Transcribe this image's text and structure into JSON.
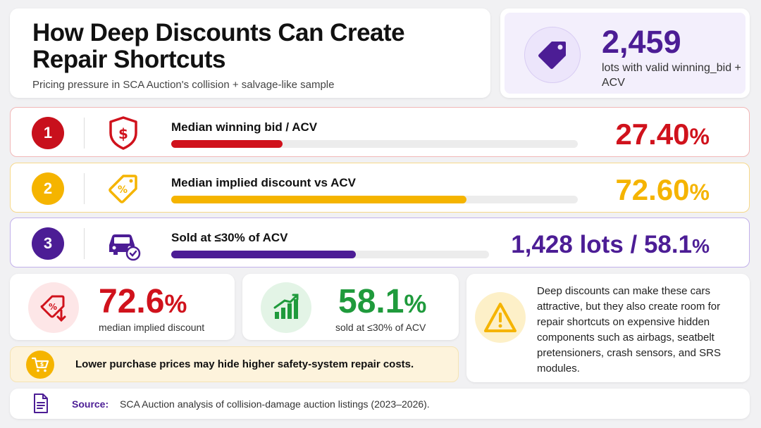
{
  "header": {
    "title": "How Deep Discounts Can Create Repair Shortcuts",
    "subtitle": "Pricing pressure in SCA Auction's collision + salvage-like sample"
  },
  "stat": {
    "value": "2,459",
    "description": "lots with valid winning_bid + ACV",
    "icon": "price-tag-icon"
  },
  "metrics": [
    {
      "number": "1",
      "icon": "shield-dollar-icon",
      "label": "Median winning bid / ACV",
      "value": "27.40",
      "unit": "%",
      "progress": 0.274,
      "color": "#d0121c"
    },
    {
      "number": "2",
      "icon": "discount-tag-icon",
      "label": "Median implied discount vs ACV",
      "value": "72.60",
      "unit": "%",
      "progress": 0.726,
      "color": "#f5b400"
    },
    {
      "number": "3",
      "icon": "car-check-icon",
      "label": "Sold at ≤30% of ACV",
      "value": "1,428 lots / 58.1",
      "unit": "%",
      "progress": 0.581,
      "color": "#4c1d95"
    }
  ],
  "kpis": {
    "discount": {
      "value": "72.6",
      "unit": "%",
      "caption": "median implied discount",
      "color": "#d0121c",
      "icon": "discount-down-icon"
    },
    "sold": {
      "value": "58.1",
      "unit": "%",
      "caption": "sold at ≤30% of ACV",
      "color": "#1f9a3c",
      "icon": "growth-chart-icon"
    }
  },
  "warning": {
    "icon": "warning-triangle-icon",
    "text": "Deep discounts can make these cars attractive, but they also create room for repair shortcuts on expensive hidden components such as airbags, seatbelt pretensioners, crash sensors, and SRS modules."
  },
  "alert": {
    "icon": "cart-dollar-icon",
    "text": "Lower purchase prices may hide higher safety-system repair costs."
  },
  "source": {
    "label": "Source:",
    "text": "SCA Auction analysis of collision-damage auction listings (2023–2026).",
    "icon": "document-icon"
  }
}
